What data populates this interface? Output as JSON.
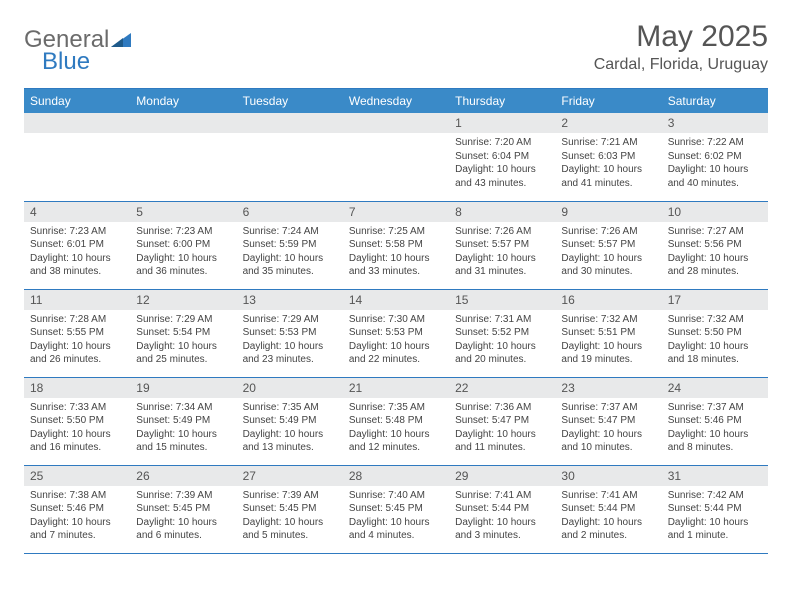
{
  "logo": {
    "text1": "General",
    "text2": "Blue"
  },
  "title": "May 2025",
  "location": "Cardal, Florida, Uruguay",
  "weekdays": [
    "Sunday",
    "Monday",
    "Tuesday",
    "Wednesday",
    "Thursday",
    "Friday",
    "Saturday"
  ],
  "colors": {
    "header_bg": "#3a8ac0",
    "border": "#2f7ac0",
    "daynum_bg": "#e8e9ea",
    "text": "#555555",
    "logo_gray": "#6b6b6b",
    "logo_blue": "#2f7ac0"
  },
  "weeks": [
    [
      {
        "n": "",
        "sr": "",
        "ss": "",
        "dl": ""
      },
      {
        "n": "",
        "sr": "",
        "ss": "",
        "dl": ""
      },
      {
        "n": "",
        "sr": "",
        "ss": "",
        "dl": ""
      },
      {
        "n": "",
        "sr": "",
        "ss": "",
        "dl": ""
      },
      {
        "n": "1",
        "sr": "Sunrise: 7:20 AM",
        "ss": "Sunset: 6:04 PM",
        "dl": "Daylight: 10 hours and 43 minutes."
      },
      {
        "n": "2",
        "sr": "Sunrise: 7:21 AM",
        "ss": "Sunset: 6:03 PM",
        "dl": "Daylight: 10 hours and 41 minutes."
      },
      {
        "n": "3",
        "sr": "Sunrise: 7:22 AM",
        "ss": "Sunset: 6:02 PM",
        "dl": "Daylight: 10 hours and 40 minutes."
      }
    ],
    [
      {
        "n": "4",
        "sr": "Sunrise: 7:23 AM",
        "ss": "Sunset: 6:01 PM",
        "dl": "Daylight: 10 hours and 38 minutes."
      },
      {
        "n": "5",
        "sr": "Sunrise: 7:23 AM",
        "ss": "Sunset: 6:00 PM",
        "dl": "Daylight: 10 hours and 36 minutes."
      },
      {
        "n": "6",
        "sr": "Sunrise: 7:24 AM",
        "ss": "Sunset: 5:59 PM",
        "dl": "Daylight: 10 hours and 35 minutes."
      },
      {
        "n": "7",
        "sr": "Sunrise: 7:25 AM",
        "ss": "Sunset: 5:58 PM",
        "dl": "Daylight: 10 hours and 33 minutes."
      },
      {
        "n": "8",
        "sr": "Sunrise: 7:26 AM",
        "ss": "Sunset: 5:57 PM",
        "dl": "Daylight: 10 hours and 31 minutes."
      },
      {
        "n": "9",
        "sr": "Sunrise: 7:26 AM",
        "ss": "Sunset: 5:57 PM",
        "dl": "Daylight: 10 hours and 30 minutes."
      },
      {
        "n": "10",
        "sr": "Sunrise: 7:27 AM",
        "ss": "Sunset: 5:56 PM",
        "dl": "Daylight: 10 hours and 28 minutes."
      }
    ],
    [
      {
        "n": "11",
        "sr": "Sunrise: 7:28 AM",
        "ss": "Sunset: 5:55 PM",
        "dl": "Daylight: 10 hours and 26 minutes."
      },
      {
        "n": "12",
        "sr": "Sunrise: 7:29 AM",
        "ss": "Sunset: 5:54 PM",
        "dl": "Daylight: 10 hours and 25 minutes."
      },
      {
        "n": "13",
        "sr": "Sunrise: 7:29 AM",
        "ss": "Sunset: 5:53 PM",
        "dl": "Daylight: 10 hours and 23 minutes."
      },
      {
        "n": "14",
        "sr": "Sunrise: 7:30 AM",
        "ss": "Sunset: 5:53 PM",
        "dl": "Daylight: 10 hours and 22 minutes."
      },
      {
        "n": "15",
        "sr": "Sunrise: 7:31 AM",
        "ss": "Sunset: 5:52 PM",
        "dl": "Daylight: 10 hours and 20 minutes."
      },
      {
        "n": "16",
        "sr": "Sunrise: 7:32 AM",
        "ss": "Sunset: 5:51 PM",
        "dl": "Daylight: 10 hours and 19 minutes."
      },
      {
        "n": "17",
        "sr": "Sunrise: 7:32 AM",
        "ss": "Sunset: 5:50 PM",
        "dl": "Daylight: 10 hours and 18 minutes."
      }
    ],
    [
      {
        "n": "18",
        "sr": "Sunrise: 7:33 AM",
        "ss": "Sunset: 5:50 PM",
        "dl": "Daylight: 10 hours and 16 minutes."
      },
      {
        "n": "19",
        "sr": "Sunrise: 7:34 AM",
        "ss": "Sunset: 5:49 PM",
        "dl": "Daylight: 10 hours and 15 minutes."
      },
      {
        "n": "20",
        "sr": "Sunrise: 7:35 AM",
        "ss": "Sunset: 5:49 PM",
        "dl": "Daylight: 10 hours and 13 minutes."
      },
      {
        "n": "21",
        "sr": "Sunrise: 7:35 AM",
        "ss": "Sunset: 5:48 PM",
        "dl": "Daylight: 10 hours and 12 minutes."
      },
      {
        "n": "22",
        "sr": "Sunrise: 7:36 AM",
        "ss": "Sunset: 5:47 PM",
        "dl": "Daylight: 10 hours and 11 minutes."
      },
      {
        "n": "23",
        "sr": "Sunrise: 7:37 AM",
        "ss": "Sunset: 5:47 PM",
        "dl": "Daylight: 10 hours and 10 minutes."
      },
      {
        "n": "24",
        "sr": "Sunrise: 7:37 AM",
        "ss": "Sunset: 5:46 PM",
        "dl": "Daylight: 10 hours and 8 minutes."
      }
    ],
    [
      {
        "n": "25",
        "sr": "Sunrise: 7:38 AM",
        "ss": "Sunset: 5:46 PM",
        "dl": "Daylight: 10 hours and 7 minutes."
      },
      {
        "n": "26",
        "sr": "Sunrise: 7:39 AM",
        "ss": "Sunset: 5:45 PM",
        "dl": "Daylight: 10 hours and 6 minutes."
      },
      {
        "n": "27",
        "sr": "Sunrise: 7:39 AM",
        "ss": "Sunset: 5:45 PM",
        "dl": "Daylight: 10 hours and 5 minutes."
      },
      {
        "n": "28",
        "sr": "Sunrise: 7:40 AM",
        "ss": "Sunset: 5:45 PM",
        "dl": "Daylight: 10 hours and 4 minutes."
      },
      {
        "n": "29",
        "sr": "Sunrise: 7:41 AM",
        "ss": "Sunset: 5:44 PM",
        "dl": "Daylight: 10 hours and 3 minutes."
      },
      {
        "n": "30",
        "sr": "Sunrise: 7:41 AM",
        "ss": "Sunset: 5:44 PM",
        "dl": "Daylight: 10 hours and 2 minutes."
      },
      {
        "n": "31",
        "sr": "Sunrise: 7:42 AM",
        "ss": "Sunset: 5:44 PM",
        "dl": "Daylight: 10 hours and 1 minute."
      }
    ]
  ]
}
